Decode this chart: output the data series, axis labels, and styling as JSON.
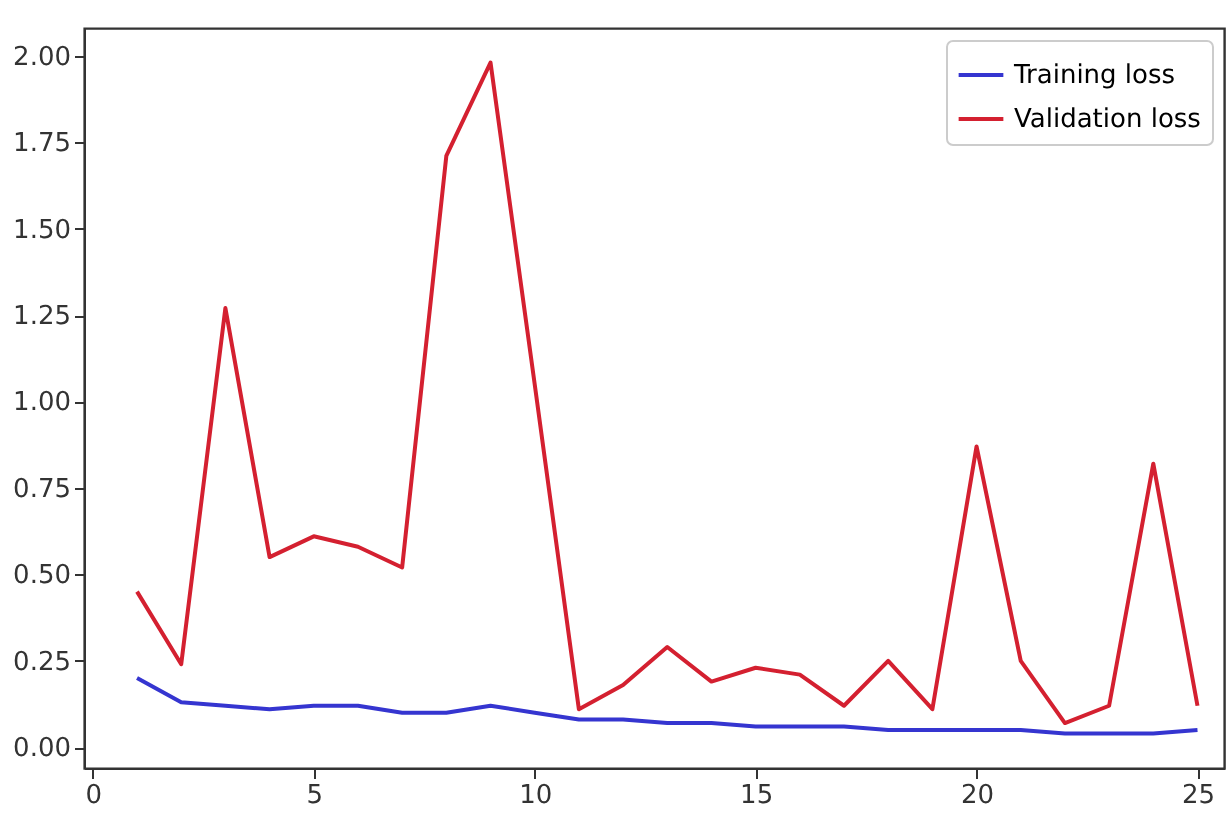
{
  "chart_data": {
    "type": "line",
    "x": [
      1,
      2,
      3,
      4,
      5,
      6,
      7,
      8,
      9,
      10,
      11,
      12,
      13,
      14,
      15,
      16,
      17,
      18,
      19,
      20,
      21,
      22,
      23,
      24,
      25
    ],
    "series": [
      {
        "name": "Training loss",
        "color": "#3535d0",
        "values": [
          0.2,
          0.13,
          0.12,
          0.11,
          0.12,
          0.12,
          0.1,
          0.1,
          0.12,
          0.1,
          0.08,
          0.08,
          0.07,
          0.07,
          0.06,
          0.06,
          0.06,
          0.05,
          0.05,
          0.05,
          0.05,
          0.04,
          0.04,
          0.04,
          0.05
        ]
      },
      {
        "name": "Validation loss",
        "color": "#d42030",
        "values": [
          0.45,
          0.24,
          1.27,
          0.55,
          0.61,
          0.58,
          0.52,
          1.71,
          1.98,
          1.05,
          0.11,
          0.18,
          0.29,
          0.19,
          0.23,
          0.21,
          0.12,
          0.25,
          0.11,
          0.87,
          0.25,
          0.07,
          0.12,
          0.82,
          0.12
        ]
      }
    ],
    "xlim": [
      -0.2,
      25.6
    ],
    "xticks": [
      0,
      5,
      10,
      15,
      20,
      25
    ],
    "ylim": [
      -0.06,
      2.08
    ],
    "yticks": [
      {
        "value": 0,
        "label": "0.00"
      },
      {
        "value": 0.25,
        "label": "0.25"
      },
      {
        "value": 0.5,
        "label": "0.50"
      },
      {
        "value": 0.75,
        "label": "0.75"
      },
      {
        "value": 1,
        "label": "1.00"
      },
      {
        "value": 1.25,
        "label": "1.25"
      },
      {
        "value": 1.5,
        "label": "1.50"
      },
      {
        "value": 1.75,
        "label": "1.75"
      },
      {
        "value": 2,
        "label": "2.00"
      }
    ],
    "legend": "top right",
    "grid": false
  }
}
